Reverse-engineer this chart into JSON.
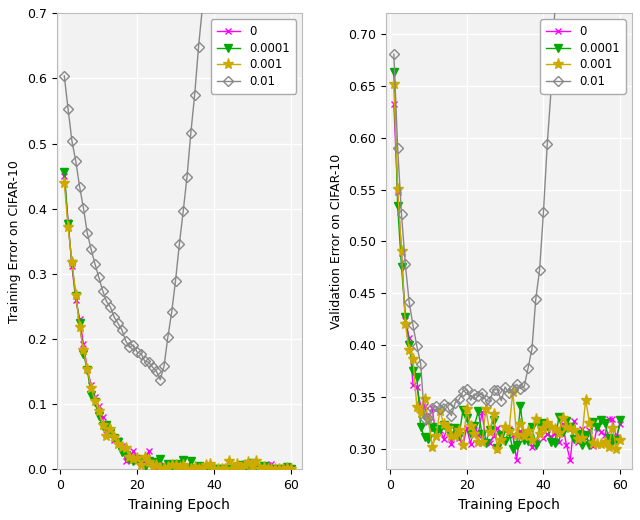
{
  "legend_labels": [
    "0",
    "0.0001",
    "0.001",
    "0.01"
  ],
  "colors": [
    "#ff00ff",
    "#00aa00",
    "#ccaa00",
    "#888888"
  ],
  "markers": [
    "x",
    "v",
    "*",
    "D"
  ],
  "left_ylabel": "Training Error on CIFAR-10",
  "right_ylabel": "Validation Error on CIFAR-10",
  "xlabel": "Training Epoch",
  "left_ylim": [
    0.0,
    0.7
  ],
  "right_ylim": [
    0.28,
    0.72
  ],
  "left_yticks": [
    0.0,
    0.1,
    0.2,
    0.3,
    0.4,
    0.5,
    0.6,
    0.7
  ],
  "right_yticks": [
    0.3,
    0.35,
    0.4,
    0.45,
    0.5,
    0.55,
    0.6,
    0.65,
    0.7
  ],
  "xticks": [
    0,
    20,
    40,
    60
  ],
  "background": "#f2f2f2",
  "grid_color": "#ffffff",
  "n_epochs": 60
}
